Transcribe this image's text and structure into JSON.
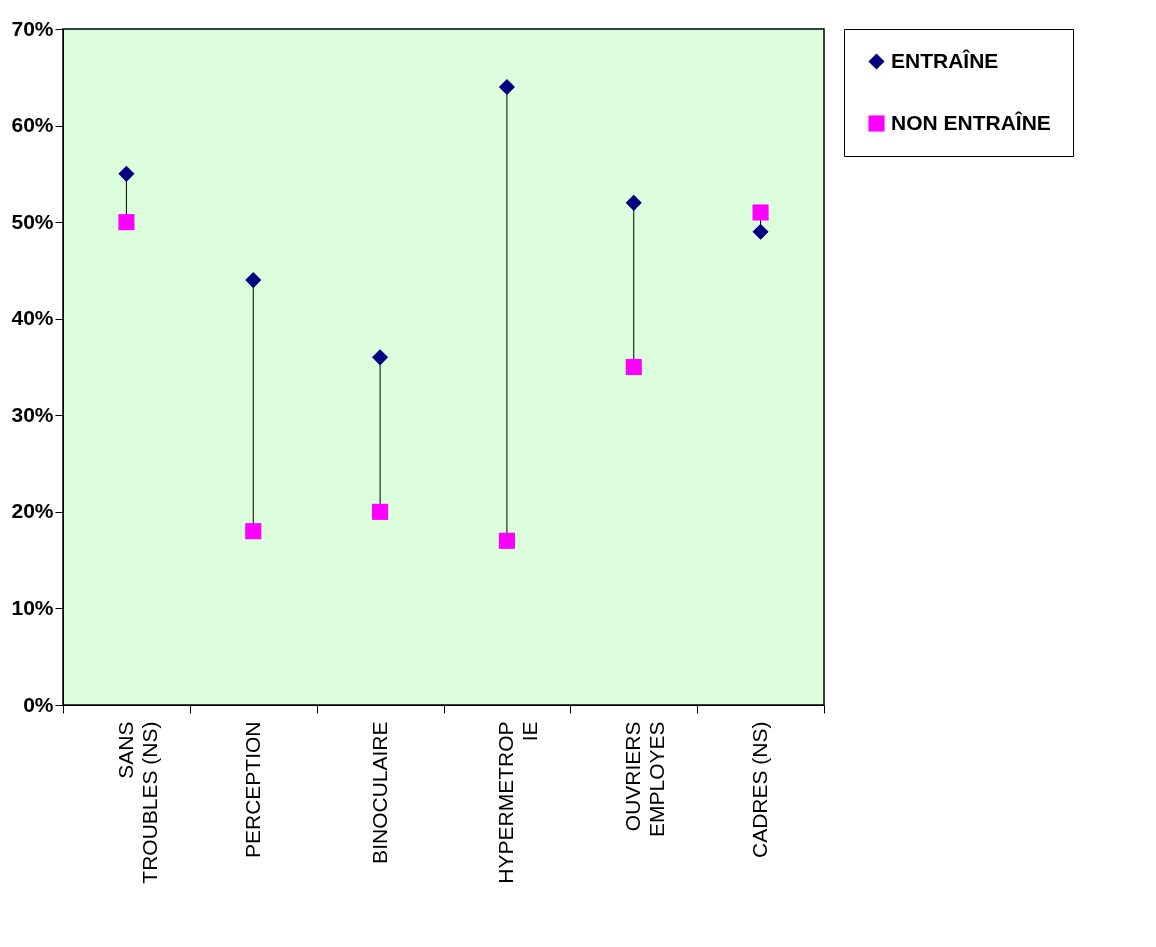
{
  "chart_data": {
    "type": "scatter",
    "categories": [
      "SANS\nTROUBLES (NS)",
      "PERCEPTION",
      "BINOCULAIRE",
      "HYPERMETROP\nIE",
      "OUVRIERS\nEMPLOYES",
      "CADRES (NS)"
    ],
    "series": [
      {
        "name": "ENTRAÎNE",
        "color": "#000080",
        "marker": "diamond",
        "values": [
          55,
          44,
          36,
          64,
          52,
          49
        ]
      },
      {
        "name": "NON ENTRAÎNE",
        "color": "#ff00ff",
        "marker": "square",
        "values": [
          50,
          18,
          20,
          17,
          35,
          51
        ]
      }
    ],
    "ylim": [
      0,
      70
    ],
    "yticks": [
      {
        "value": 0,
        "label": "0%"
      },
      {
        "value": 10,
        "label": "10%"
      },
      {
        "value": 20,
        "label": "20%"
      },
      {
        "value": 30,
        "label": "30%"
      },
      {
        "value": 40,
        "label": "40%"
      },
      {
        "value": 50,
        "label": "50%"
      },
      {
        "value": 60,
        "label": "60%"
      },
      {
        "value": 70,
        "label": "70%"
      }
    ],
    "grid": false,
    "legend": "right"
  }
}
